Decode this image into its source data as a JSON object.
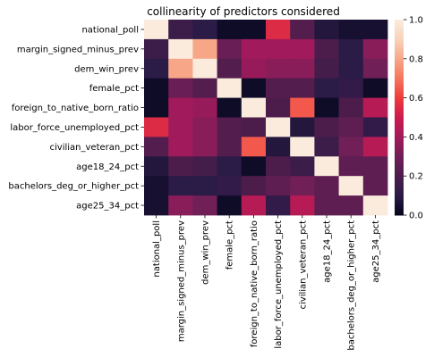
{
  "chart_data": {
    "type": "heatmap",
    "title": "collinearity of predictors considered",
    "rows": [
      "national_poll",
      "margin_signed_minus_prev",
      "dem_win_prev",
      "female_pct",
      "foreign_to_native_born_ratio",
      "labor_force_unemployed_pct",
      "civilian_veteran_pct",
      "age18_24_pct",
      "bachelors_deg_or_higher_pct",
      "age25_34_pct"
    ],
    "columns": [
      "national_poll",
      "margin_signed_minus_prev",
      "dem_win_prev",
      "female_pct",
      "foreign_to_native_born_ratio",
      "labor_force_unemployed_pct",
      "civilian_veteran_pct",
      "age18_24_pct",
      "bachelors_deg_or_higher_pct",
      "age25_34_pct"
    ],
    "values": [
      [
        1.0,
        0.15,
        0.1,
        0.03,
        0.03,
        0.55,
        0.22,
        0.08,
        0.05,
        0.05
      ],
      [
        0.15,
        1.0,
        0.8,
        0.28,
        0.4,
        0.4,
        0.4,
        0.2,
        0.1,
        0.35
      ],
      [
        0.1,
        0.8,
        1.0,
        0.22,
        0.38,
        0.35,
        0.35,
        0.18,
        0.1,
        0.3
      ],
      [
        0.03,
        0.28,
        0.22,
        1.0,
        0.03,
        0.22,
        0.22,
        0.1,
        0.12,
        0.03
      ],
      [
        0.03,
        0.4,
        0.38,
        0.03,
        1.0,
        0.2,
        0.65,
        0.03,
        0.2,
        0.45
      ],
      [
        0.55,
        0.4,
        0.35,
        0.22,
        0.2,
        1.0,
        0.08,
        0.2,
        0.25,
        0.12
      ],
      [
        0.22,
        0.4,
        0.35,
        0.22,
        0.65,
        0.08,
        1.0,
        0.15,
        0.3,
        0.45
      ],
      [
        0.08,
        0.2,
        0.18,
        0.1,
        0.03,
        0.2,
        0.15,
        1.0,
        0.25,
        0.25
      ],
      [
        0.05,
        0.1,
        0.1,
        0.12,
        0.2,
        0.25,
        0.3,
        0.25,
        1.0,
        0.25
      ],
      [
        0.05,
        0.35,
        0.3,
        0.03,
        0.45,
        0.12,
        0.45,
        0.25,
        0.25,
        1.0
      ]
    ],
    "colorbar": {
      "min": 0.0,
      "max": 1.0,
      "ticks": [
        "0.0",
        "0.2",
        "0.4",
        "0.6",
        "0.8",
        "1.0"
      ]
    },
    "colormap_stops": [
      "#03051a",
      "#2b1b47",
      "#4c1d4b",
      "#701f57",
      "#a11a5b",
      "#cb1b4f",
      "#ed3a3b",
      "#f6765c",
      "#f7a688",
      "#f9d2b8",
      "#faebdd"
    ]
  }
}
